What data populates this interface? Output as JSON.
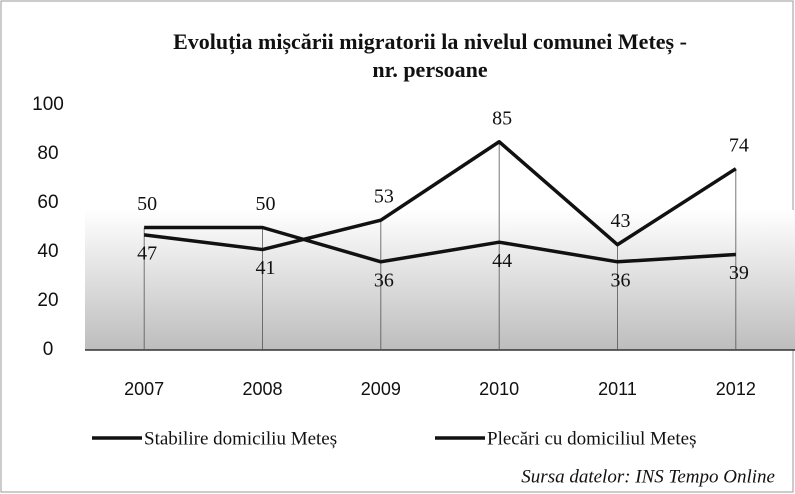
{
  "chart_data": {
    "type": "line",
    "title": [
      "Evoluția mișcării migratorii la nivelul comunei Meteș -",
      "nr. persoane"
    ],
    "categories": [
      "2007",
      "2008",
      "2009",
      "2010",
      "2011",
      "2012"
    ],
    "series": [
      {
        "name": "Stabilire domiciliu Meteș",
        "color": "#111111",
        "values": [
          50,
          50,
          36,
          44,
          36,
          39
        ]
      },
      {
        "name": "Plecări cu domiciliul Meteș",
        "color": "#111111",
        "values": [
          47,
          41,
          53,
          85,
          43,
          74
        ]
      }
    ],
    "ylim": [
      0,
      100
    ],
    "yticks": [
      0,
      20,
      40,
      60,
      80,
      100
    ],
    "source": "Sursa datelor: INS Tempo Online"
  }
}
